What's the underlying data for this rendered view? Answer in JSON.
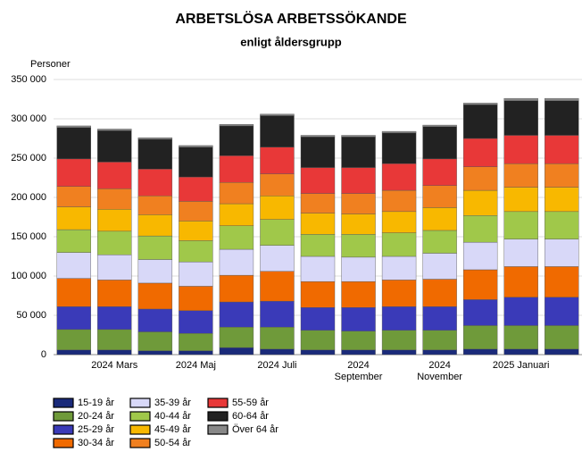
{
  "chart_data": {
    "type": "stacked_bar",
    "title": "ARBETSLÖSA ARBETSSÖKANDE",
    "subtitle": "enligt åldersgrupp",
    "y_label": "Personer",
    "categories": [
      null,
      "2024 Mars",
      null,
      "2024 Maj",
      null,
      "2024 Juli",
      null,
      "2024 September",
      null,
      "2024 November",
      null,
      "2025 Januari",
      null
    ],
    "ylim": [
      0,
      350000
    ],
    "yticks": [
      {
        "value": 0,
        "label": "0"
      },
      {
        "value": 50000,
        "label": "50 000"
      },
      {
        "value": 100000,
        "label": "100 000"
      },
      {
        "value": 150000,
        "label": "150 000"
      },
      {
        "value": 200000,
        "label": "200 000"
      },
      {
        "value": 250000,
        "label": "250 000"
      },
      {
        "value": 300000,
        "label": "300 000"
      },
      {
        "value": 350000,
        "label": "350 000"
      }
    ],
    "grid": true,
    "series": [
      {
        "name": "15-19 år",
        "color": "#1a2a7a",
        "values": [
          6000,
          6000,
          5000,
          5000,
          9000,
          7000,
          6000,
          6000,
          6000,
          6000,
          7000,
          7000,
          7000
        ]
      },
      {
        "name": "20-24 år",
        "color": "#6f9a3a",
        "values": [
          26000,
          26000,
          24000,
          22000,
          26000,
          28000,
          25000,
          24000,
          25000,
          25000,
          30000,
          30000,
          30000
        ]
      },
      {
        "name": "25-29 år",
        "color": "#3a3ab8",
        "values": [
          29000,
          29000,
          29000,
          29000,
          32000,
          33000,
          29000,
          30000,
          30000,
          30000,
          33000,
          36000,
          36000
        ]
      },
      {
        "name": "30-34 år",
        "color": "#f06a00",
        "values": [
          36000,
          34000,
          33000,
          31000,
          34000,
          38000,
          33000,
          33000,
          34000,
          35000,
          38000,
          39000,
          39000
        ]
      },
      {
        "name": "35-39 år",
        "color": "#d8d8f8",
        "values": [
          33000,
          32000,
          30000,
          31000,
          33000,
          33000,
          32000,
          31000,
          30000,
          33000,
          35000,
          35000,
          35000
        ]
      },
      {
        "name": "40-44 år",
        "color": "#a0c84a",
        "values": [
          29000,
          30000,
          30000,
          27000,
          30000,
          33000,
          28000,
          29000,
          30000,
          29000,
          34000,
          35000,
          35000
        ]
      },
      {
        "name": "45-49 år",
        "color": "#f8b800",
        "values": [
          29000,
          28000,
          27000,
          25000,
          28000,
          30000,
          27000,
          26000,
          27000,
          29000,
          32000,
          31000,
          31000
        ]
      },
      {
        "name": "50-54 år",
        "color": "#f08020",
        "values": [
          26000,
          26000,
          24000,
          25000,
          27000,
          28000,
          25000,
          26000,
          27000,
          28000,
          30000,
          30000,
          30000
        ]
      },
      {
        "name": "55-59 år",
        "color": "#e83838",
        "values": [
          35000,
          34000,
          34000,
          31000,
          34000,
          34000,
          33000,
          33000,
          34000,
          34000,
          36000,
          36000,
          36000
        ]
      },
      {
        "name": "60-64 år",
        "color": "#222222",
        "values": [
          40000,
          40000,
          38000,
          38000,
          38000,
          40000,
          39000,
          39000,
          39000,
          41000,
          43000,
          44000,
          44000
        ]
      },
      {
        "name": "Över 64 år",
        "color": "#888888",
        "values": [
          2000,
          2000,
          2000,
          2000,
          2000,
          2000,
          2000,
          2000,
          2000,
          2000,
          2000,
          3000,
          3000
        ]
      }
    ]
  }
}
